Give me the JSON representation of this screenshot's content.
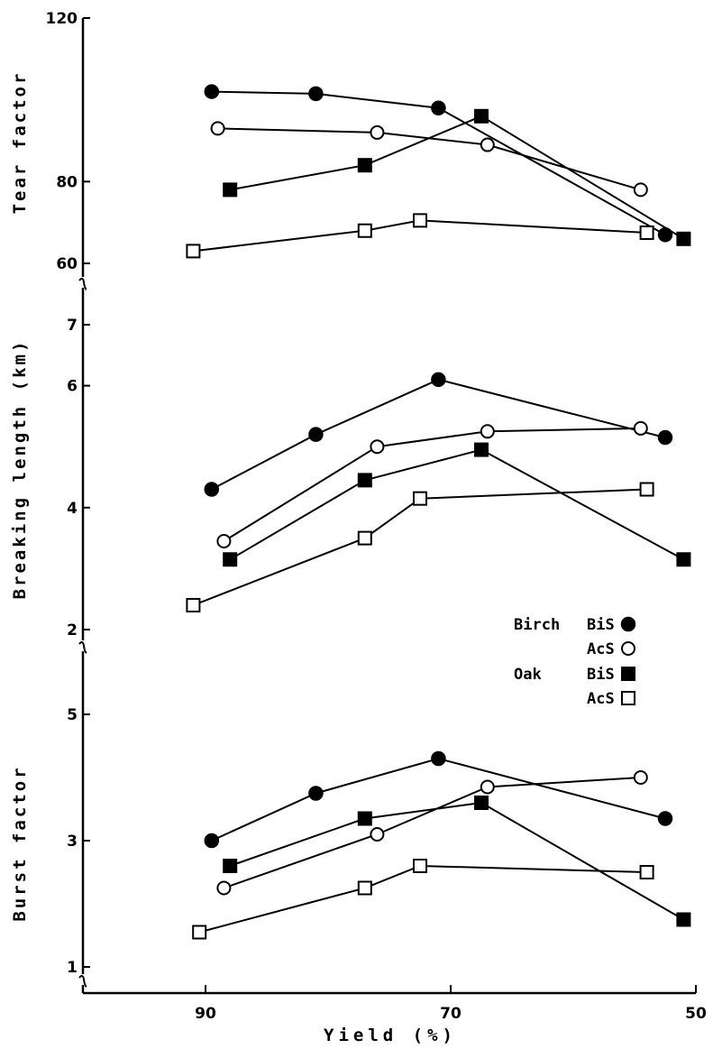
{
  "chart_data": [
    {
      "type": "line",
      "ylabel": "Tear factor",
      "ylim": [
        60,
        120
      ],
      "yticks": [
        "60",
        "80",
        "120"
      ],
      "series": [
        {
          "group": "Birch",
          "name": "BiS",
          "x": [
            89.5,
            81,
            71,
            52.5
          ],
          "y": [
            102,
            101.5,
            98,
            67
          ]
        },
        {
          "group": "Birch",
          "name": "AcS",
          "x": [
            89,
            76,
            67,
            54.5
          ],
          "y": [
            93,
            92,
            89,
            78
          ]
        },
        {
          "group": "Oak",
          "name": "BiS",
          "x": [
            88,
            77,
            67.5,
            51
          ],
          "y": [
            78,
            84,
            96,
            66
          ]
        },
        {
          "group": "Oak",
          "name": "AcS",
          "x": [
            91,
            77,
            72.5,
            54
          ],
          "y": [
            63,
            68,
            70.5,
            67.5
          ]
        }
      ]
    },
    {
      "type": "line",
      "ylabel": "Breaking length (km)",
      "ylim": [
        2,
        7
      ],
      "yticks": [
        "2",
        "4",
        "6",
        "7"
      ],
      "series": [
        {
          "group": "Birch",
          "name": "BiS",
          "x": [
            89.5,
            81,
            71,
            52.5
          ],
          "y": [
            4.3,
            5.2,
            6.1,
            5.15
          ]
        },
        {
          "group": "Birch",
          "name": "AcS",
          "x": [
            88.5,
            76,
            67,
            54.5
          ],
          "y": [
            3.45,
            5.0,
            5.25,
            5.3
          ]
        },
        {
          "group": "Oak",
          "name": "BiS",
          "x": [
            88,
            77,
            67.5,
            51
          ],
          "y": [
            3.15,
            4.45,
            4.95,
            3.15
          ]
        },
        {
          "group": "Oak",
          "name": "AcS",
          "x": [
            91,
            77,
            72.5,
            54
          ],
          "y": [
            2.4,
            3.5,
            4.15,
            4.3
          ]
        }
      ]
    },
    {
      "type": "line",
      "ylabel": "Burst factor",
      "xlabel": "Yield (%)",
      "ylim": [
        1,
        5
      ],
      "yticks": [
        "1",
        "3",
        "5"
      ],
      "xlim": [
        100,
        50
      ],
      "xticks": [
        {
          "v": 90,
          "label": "90"
        },
        {
          "v": 70,
          "label": "70"
        },
        {
          "v": 50,
          "label": "50"
        }
      ],
      "series": [
        {
          "group": "Birch",
          "name": "BiS",
          "x": [
            89.5,
            81,
            71,
            52.5
          ],
          "y": [
            3.0,
            3.75,
            4.3,
            3.35
          ]
        },
        {
          "group": "Birch",
          "name": "AcS",
          "x": [
            88.5,
            76,
            67,
            54.5
          ],
          "y": [
            2.25,
            3.1,
            3.85,
            4.0
          ]
        },
        {
          "group": "Oak",
          "name": "BiS",
          "x": [
            88,
            77,
            67.5,
            51
          ],
          "y": [
            2.6,
            3.35,
            3.6,
            1.75
          ]
        },
        {
          "group": "Oak",
          "name": "AcS",
          "x": [
            90.5,
            77,
            72.5,
            54
          ],
          "y": [
            1.55,
            2.25,
            2.6,
            2.5
          ]
        }
      ]
    }
  ],
  "legend": {
    "placement": "inside middle panel, bottom-right",
    "entries": [
      {
        "group": "Birch",
        "label": "BiS",
        "marker": "filled-circle"
      },
      {
        "group": "",
        "label": "AcS",
        "marker": "open-circle"
      },
      {
        "group": "Oak",
        "label": "BiS",
        "marker": "filled-square"
      },
      {
        "group": "",
        "label": "AcS",
        "marker": "open-square"
      }
    ]
  }
}
